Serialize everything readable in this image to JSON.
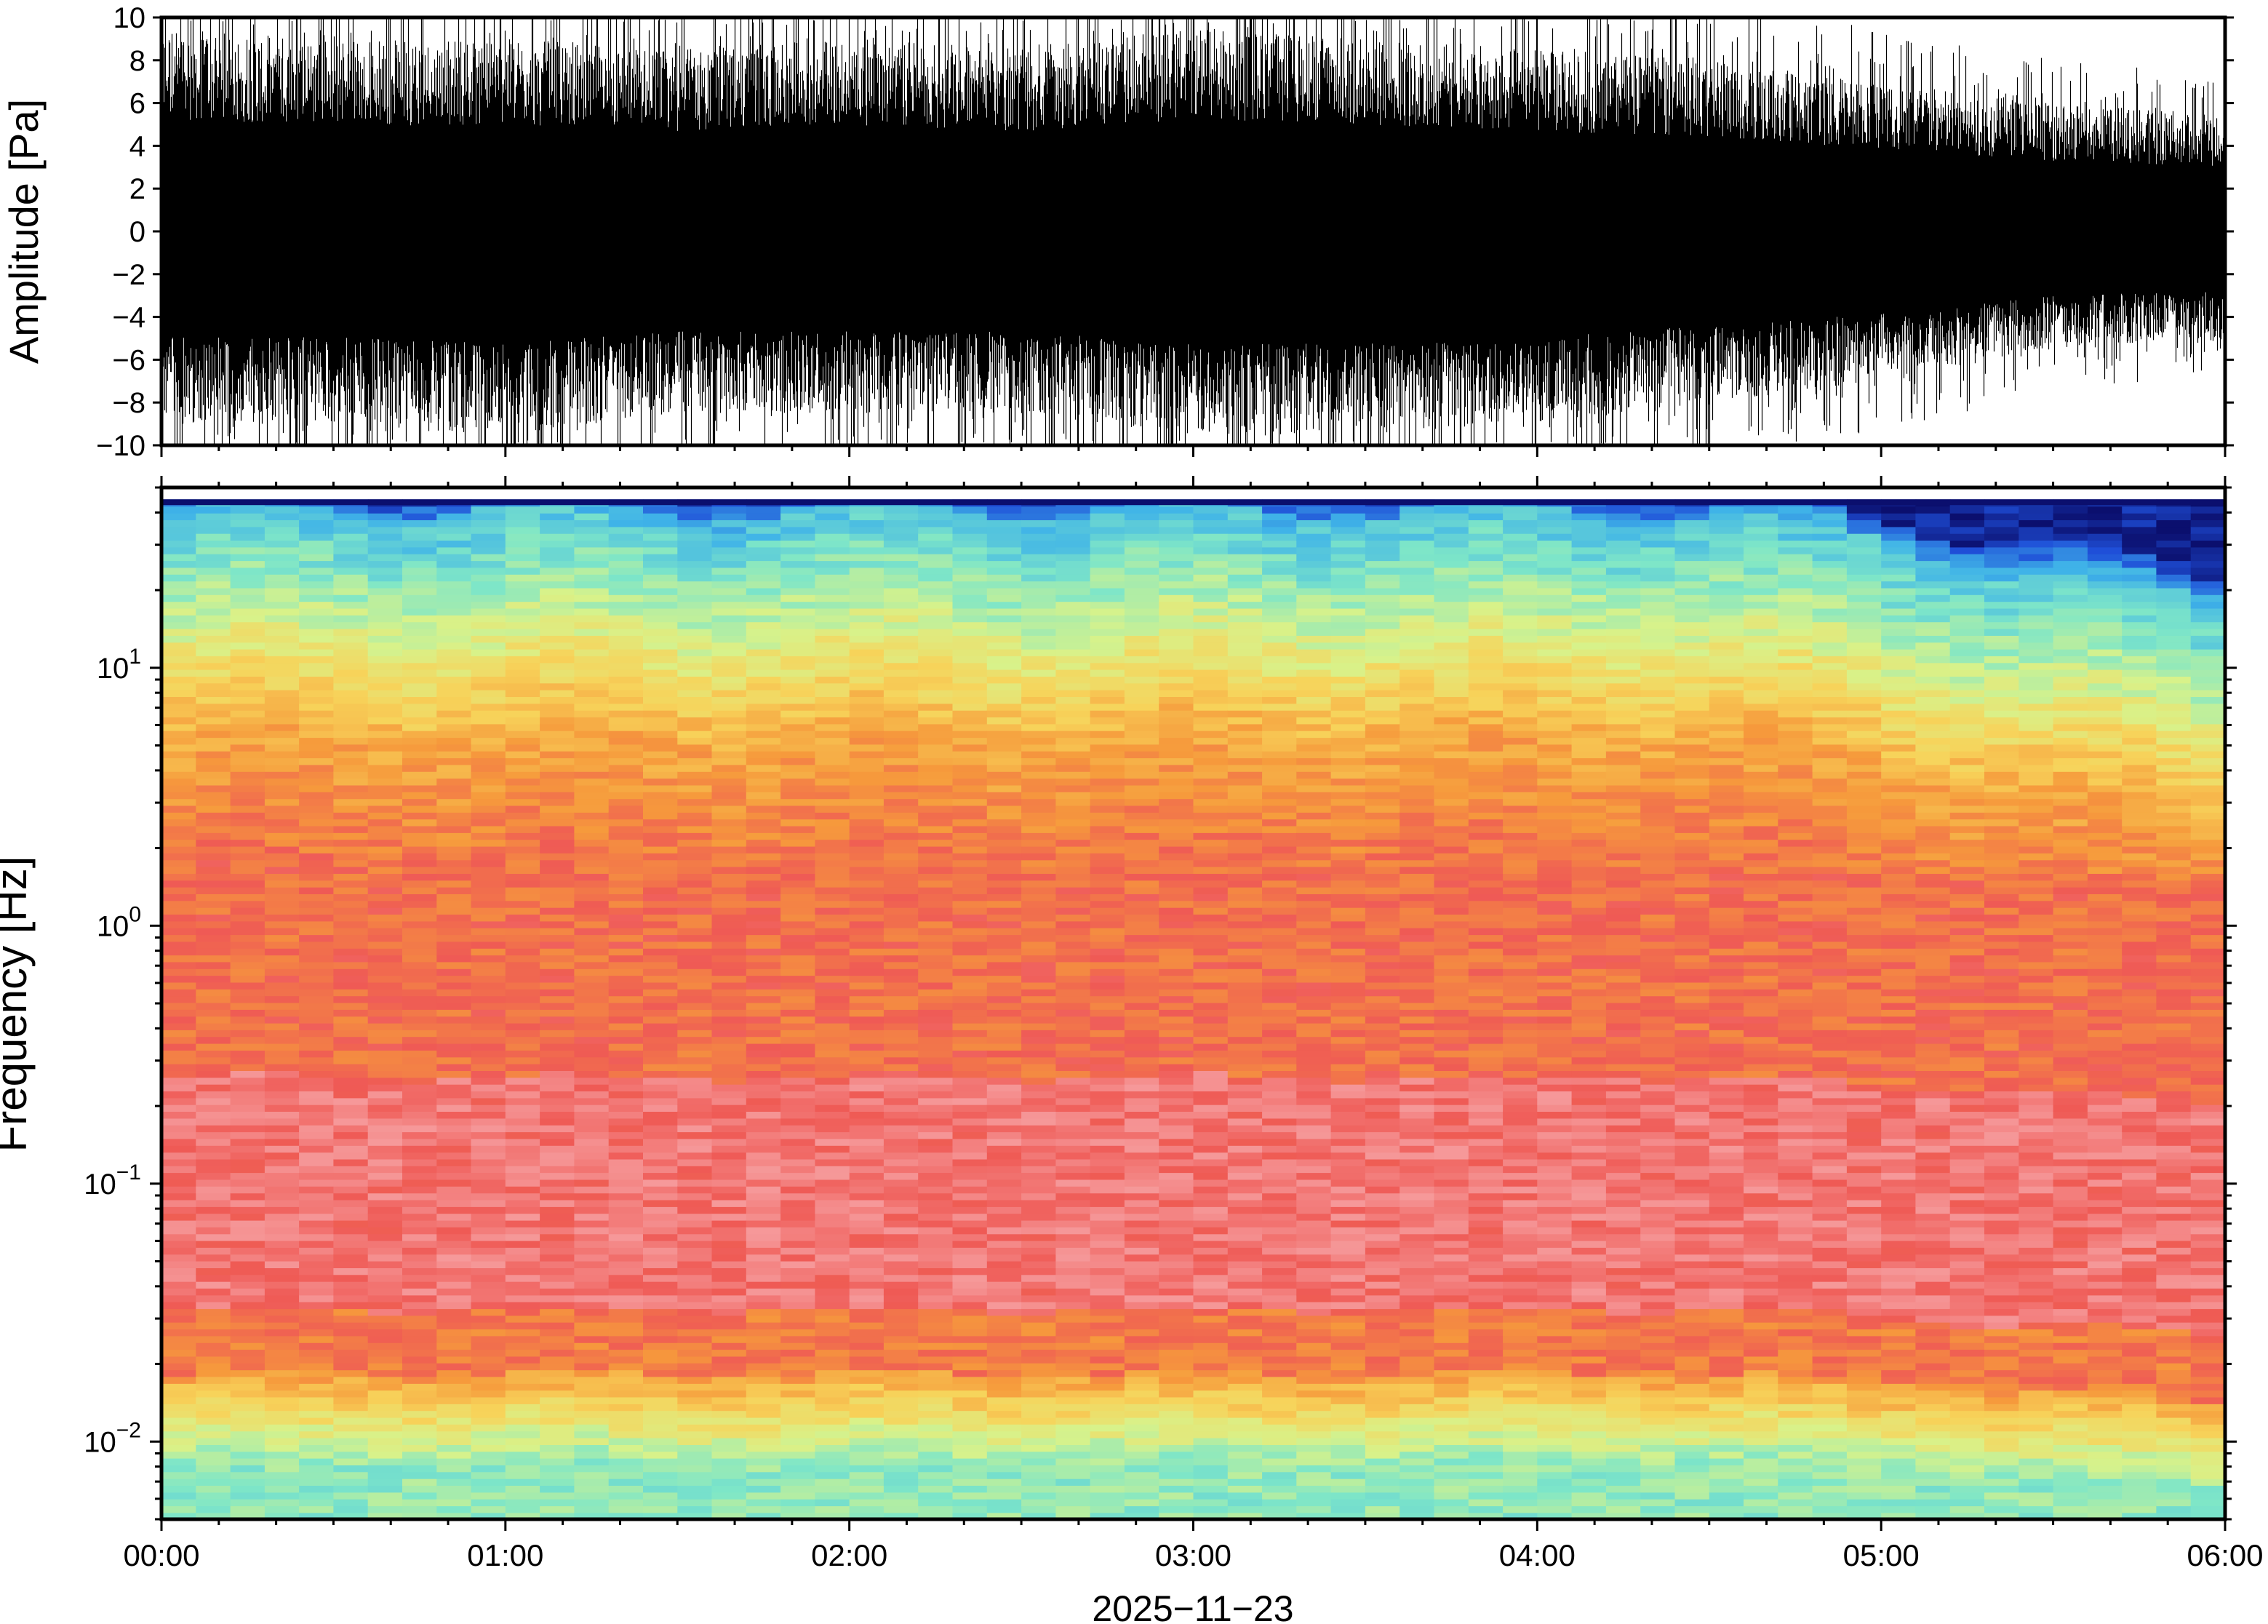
{
  "chart_data": [
    {
      "type": "line",
      "panel": "waveform",
      "ylabel": "Amplitude [Pa]",
      "ylim": [
        -10,
        10
      ],
      "yticks": [
        -10,
        -8,
        -6,
        -4,
        -2,
        0,
        2,
        4,
        6,
        8,
        10
      ],
      "ytick_labels": [
        "−10",
        "−8",
        "−6",
        "−4",
        "−2",
        "0",
        "2",
        "4",
        "6",
        "8",
        "10"
      ],
      "xlim_hours": [
        0,
        6
      ],
      "series_color": "#000000",
      "envelope_hours": [
        0,
        0.5,
        1.0,
        1.5,
        2.0,
        2.5,
        3.0,
        3.5,
        4.0,
        4.5,
        5.0,
        5.5,
        6.0
      ],
      "envelope_max_pa": [
        9.5,
        9.0,
        9.0,
        8.5,
        9.0,
        8.5,
        9.5,
        9.0,
        8.5,
        8.0,
        7.0,
        6.0,
        5.5
      ],
      "envelope_min_pa": [
        -9.0,
        -9.0,
        -9.5,
        -8.5,
        -8.5,
        -8.5,
        -9.5,
        -9.5,
        -9.0,
        -8.0,
        -7.0,
        -5.5,
        -5.0
      ]
    },
    {
      "type": "heatmap",
      "panel": "spectrogram",
      "ylabel": "Frequency [Hz]",
      "yscale": "log",
      "ylim_hz": [
        0.005,
        50
      ],
      "yticks": [
        {
          "value": 0.01,
          "base": "10",
          "exp": "−2"
        },
        {
          "value": 0.1,
          "base": "10",
          "exp": "−1"
        },
        {
          "value": 1,
          "base": "10",
          "exp": "0"
        },
        {
          "value": 10,
          "base": "10",
          "exp": "1"
        }
      ],
      "xlim_hours": [
        0,
        6
      ],
      "xticks": [
        "00:00",
        "01:00",
        "02:00",
        "03:00",
        "04:00",
        "05:00",
        "06:00"
      ],
      "xlabel": "2025−11−23",
      "colormap": [
        "#0b0f6e",
        "#1f4fd8",
        "#3fb3e8",
        "#7ee6c8",
        "#d8f28a",
        "#f7d35a",
        "#f69a3c",
        "#ef5a55",
        "#f7a6a8",
        "#fcd3d3"
      ],
      "level_profile_log10hz": [
        -2.3,
        -2.0,
        -1.7,
        -1.5,
        -1.0,
        -0.5,
        0.0,
        0.5,
        1.0,
        1.3,
        1.6,
        1.7
      ]
    }
  ]
}
